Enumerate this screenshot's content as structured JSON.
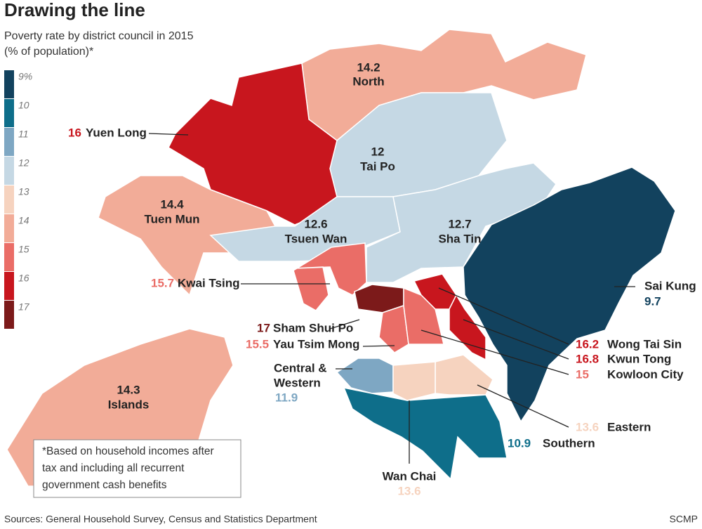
{
  "title": "Drawing the line",
  "subtitle": [
    "Poverty rate by district council in 2015",
    "(% of population)*"
  ],
  "legend": {
    "ticks": [
      {
        "value": 9,
        "label": "9%"
      },
      10,
      11,
      12,
      13,
      14,
      15,
      16,
      17
    ],
    "colors": [
      "#12425e",
      "#0e6e8a",
      "#7ea7c3",
      "#c5d8e4",
      "#f6d3bf",
      "#f2ac98",
      "#ea6d67",
      "#c8161e",
      "#7c1a1a"
    ]
  },
  "districts": [
    {
      "name": "North",
      "value": 14.2
    },
    {
      "name": "Tai Po",
      "value": 12
    },
    {
      "name": "Yuen Long",
      "value": 16
    },
    {
      "name": "Tuen Mun",
      "value": 14.4
    },
    {
      "name": "Tsuen Wan",
      "value": 12.6
    },
    {
      "name": "Sha Tin",
      "value": 12.7
    },
    {
      "name": "Kwai Tsing",
      "value": 15.7
    },
    {
      "name": "Sham Shui Po",
      "value": 17
    },
    {
      "name": "Yau Tsim Mong",
      "value": 15.5
    },
    {
      "name": [
        "Central &",
        "Western"
      ],
      "value": 11.9
    },
    {
      "name": "Islands",
      "value": 14.3
    },
    {
      "name": "Sai Kung",
      "value": 9.7
    },
    {
      "name": "Wong Tai Sin",
      "value": 16.2
    },
    {
      "name": "Kwun Tong",
      "value": 16.8
    },
    {
      "name": "Kowloon City",
      "value": 15
    },
    {
      "name": "Eastern",
      "value": 13.6
    },
    {
      "name": "Southern",
      "value": 10.9
    },
    {
      "name": "Wan Chai",
      "value": 13.6
    }
  ],
  "footnote": [
    "*Based on household incomes after",
    "tax and including all recurrent",
    "government cash benefits"
  ],
  "source": "Sources: General Household Survey, Census and Statistics Department",
  "credit": "SCMP"
}
